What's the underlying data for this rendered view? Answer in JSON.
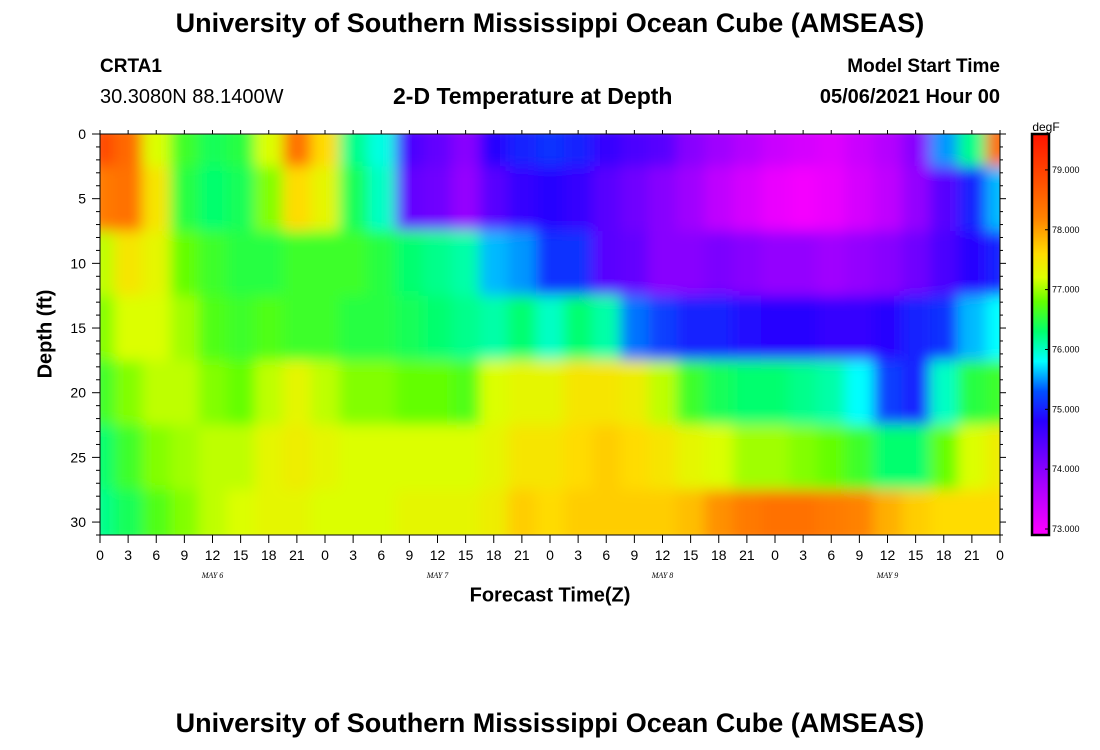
{
  "header": {
    "title": "University of Southern Mississippi Ocean Cube (AMSEAS)",
    "station": "CRTA1",
    "coords": "30.3080N  88.1400W",
    "subtitle": "2-D Temperature at Depth",
    "model_start_label": "Model Start Time",
    "model_start_date": "05/06/2021 Hour 00"
  },
  "footer": {
    "title": "University of Southern Mississippi Ocean Cube (AMSEAS)"
  },
  "chart_data": {
    "type": "heatmap",
    "xlabel": "Forecast Time(Z)",
    "ylabel": "Depth (ft)",
    "x_hours": [
      0,
      3,
      6,
      9,
      12,
      15,
      18,
      21,
      24,
      27,
      30,
      33,
      36,
      39,
      42,
      45,
      48,
      51,
      54,
      57,
      60,
      63,
      66,
      69,
      72,
      75,
      78,
      81,
      84,
      87,
      90,
      93,
      96
    ],
    "x_tick_labels": [
      "0",
      "3",
      "6",
      "9",
      "12",
      "15",
      "18",
      "21",
      "0",
      "3",
      "6",
      "9",
      "12",
      "15",
      "18",
      "21",
      "0",
      "3",
      "6",
      "9",
      "12",
      "15",
      "18",
      "21",
      "0",
      "3",
      "6",
      "9",
      "12",
      "15",
      "18",
      "21",
      "0"
    ],
    "day_labels": [
      {
        "label": "MAY 6",
        "hour": 12
      },
      {
        "label": "MAY 7",
        "hour": 36
      },
      {
        "label": "MAY 8",
        "hour": 60
      },
      {
        "label": "MAY 9",
        "hour": 84
      }
    ],
    "depths_ft": [
      0,
      5,
      10,
      15,
      20,
      25,
      30
    ],
    "y_tick_labels": [
      "0",
      "5",
      "10",
      "15",
      "20",
      "25",
      "30"
    ],
    "ylim": [
      0,
      31
    ],
    "xlim": [
      0,
      96
    ],
    "colorbar": {
      "unit": "degF",
      "range": [
        72.9,
        79.6
      ],
      "ticks": [
        73.0,
        74.0,
        75.0,
        76.0,
        77.0,
        78.0,
        79.0
      ],
      "tick_labels": [
        "73.000",
        "74.000",
        "75.000",
        "76.000",
        "77.000",
        "78.000",
        "79.000"
      ]
    },
    "temperature_degF": [
      [
        78.9,
        78.5,
        77.2,
        76.6,
        76.4,
        76.5,
        77.2,
        78.4,
        77.6,
        76.2,
        75.9,
        74.5,
        74.3,
        74.0,
        74.8,
        75.0,
        75.1,
        75.0,
        74.7,
        74.5,
        74.4,
        74.0,
        73.8,
        73.6,
        73.4,
        73.3,
        73.2,
        73.4,
        73.6,
        74.0,
        75.5,
        76.2,
        78.5
      ],
      [
        78.3,
        78.4,
        77.5,
        76.5,
        76.3,
        76.4,
        76.9,
        77.6,
        77.3,
        76.4,
        76.0,
        74.3,
        74.2,
        73.9,
        74.4,
        74.7,
        74.8,
        74.7,
        74.4,
        74.2,
        74.0,
        73.8,
        73.5,
        73.3,
        73.1,
        73.0,
        73.1,
        73.3,
        73.5,
        73.9,
        74.4,
        75.0,
        75.6
      ],
      [
        77.1,
        77.5,
        77.3,
        76.8,
        76.6,
        76.5,
        76.5,
        76.6,
        76.6,
        76.6,
        76.5,
        76.3,
        76.2,
        76.1,
        75.6,
        75.5,
        75.1,
        75.1,
        74.4,
        74.3,
        74.0,
        74.0,
        74.1,
        74.0,
        73.9,
        73.9,
        73.8,
        73.9,
        74.0,
        74.2,
        74.5,
        74.8,
        75.0
      ],
      [
        76.9,
        77.2,
        77.2,
        77.0,
        76.7,
        76.6,
        76.7,
        76.6,
        76.6,
        76.5,
        76.5,
        76.4,
        76.3,
        76.2,
        76.1,
        76.3,
        76.0,
        76.3,
        76.1,
        75.4,
        75.2,
        75.0,
        75.0,
        74.9,
        74.8,
        74.8,
        74.7,
        74.7,
        74.8,
        75.0,
        75.1,
        75.6,
        75.8
      ],
      [
        76.6,
        76.9,
        77.1,
        77.1,
        76.9,
        76.8,
        77.1,
        77.3,
        77.1,
        76.9,
        76.9,
        76.8,
        76.8,
        76.7,
        77.2,
        77.3,
        77.3,
        77.5,
        77.5,
        77.4,
        77.1,
        76.6,
        76.4,
        76.3,
        76.3,
        76.2,
        76.1,
        75.8,
        75.2,
        75.0,
        76.0,
        76.5,
        76.6
      ],
      [
        76.3,
        76.6,
        76.9,
        77.0,
        77.1,
        77.1,
        77.3,
        77.4,
        77.3,
        77.2,
        77.2,
        77.2,
        77.2,
        77.2,
        77.3,
        77.5,
        77.5,
        77.6,
        77.7,
        77.6,
        77.5,
        77.3,
        77.2,
        77.0,
        77.0,
        76.9,
        76.8,
        76.6,
        76.3,
        76.3,
        76.8,
        77.2,
        77.4
      ],
      [
        76.2,
        76.4,
        76.7,
        76.9,
        77.1,
        77.2,
        77.3,
        77.3,
        77.2,
        77.2,
        77.2,
        77.3,
        77.3,
        77.3,
        77.4,
        77.7,
        77.6,
        77.7,
        77.7,
        77.7,
        77.7,
        77.8,
        78.1,
        78.3,
        78.4,
        78.4,
        78.3,
        78.2,
        77.9,
        77.7,
        77.6,
        77.6,
        77.6
      ]
    ]
  }
}
